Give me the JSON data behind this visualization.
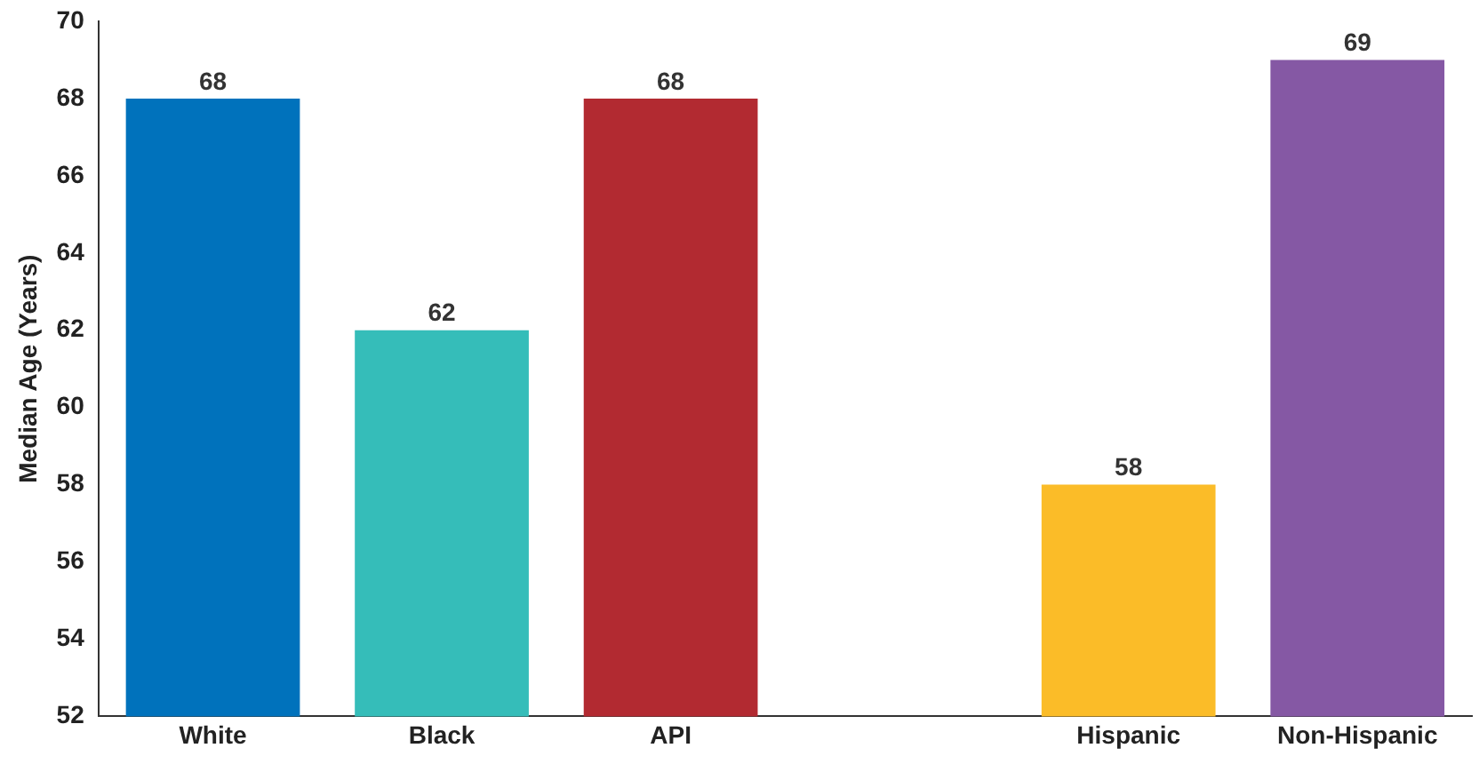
{
  "chart_data": {
    "type": "bar",
    "ylabel": "Median Age (Years)",
    "categories": [
      "White",
      "Black",
      "API",
      null,
      "Hispanic",
      "Non-Hispanic"
    ],
    "values": [
      68,
      62,
      68,
      null,
      58,
      69
    ],
    "colors": [
      "#0072bc",
      "#35bdb9",
      "#b22a31",
      "#888888",
      "#fbbc28",
      "#8558a4"
    ],
    "ylim": [
      52,
      70
    ],
    "yticks": [
      52,
      54,
      56,
      58,
      60,
      62,
      64,
      66,
      68,
      70
    ],
    "grid": false,
    "legend": false,
    "data_labels": true
  }
}
